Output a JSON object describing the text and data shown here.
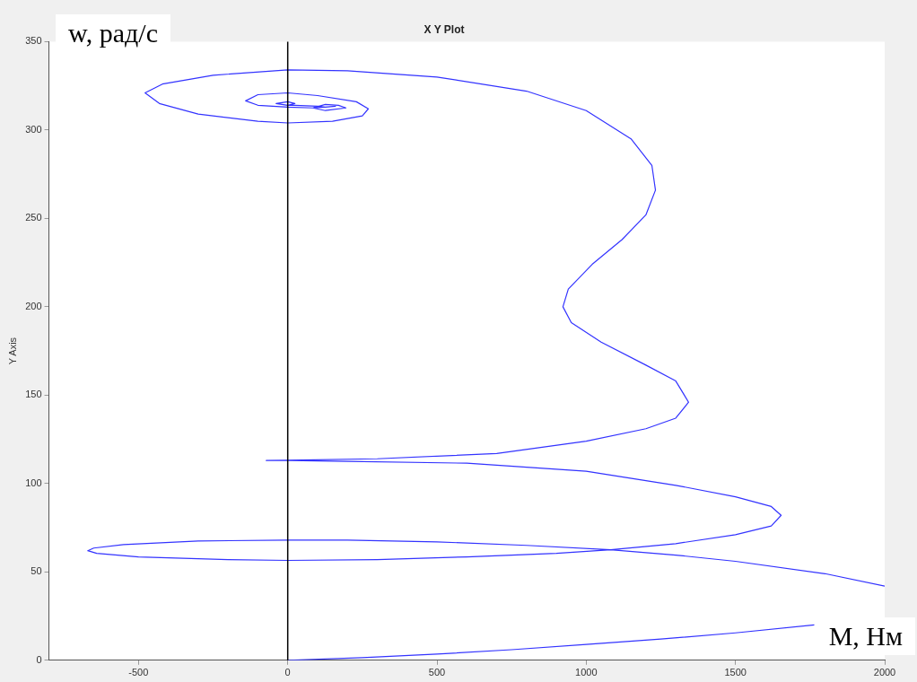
{
  "chart_data": {
    "type": "line",
    "title": "X Y Plot",
    "ylabel": "Y Axis",
    "annotations": [
      "w, рад/с",
      "M, Нм"
    ],
    "xlim": [
      -800,
      2000
    ],
    "xticks": [
      -500,
      0,
      500,
      1000,
      1500,
      2000
    ],
    "ylim": [
      0,
      350
    ],
    "yticks": [
      0,
      50,
      100,
      150,
      200,
      250,
      300,
      350
    ],
    "grid": false,
    "legend": false,
    "marker": "none",
    "line_style": "solid",
    "ref_lines": [
      {
        "axis": "x",
        "value": 0,
        "color": "#000000"
      }
    ],
    "series": [
      {
        "color": "#3333ff",
        "x": [
          0,
          250,
          500,
          750,
          1000,
          1250,
          1500,
          1764,
          null,
          2000,
          1800,
          1500,
          1300,
          1082,
          800,
          500,
          200,
          0,
          -300,
          -550,
          -650,
          -670,
          -640,
          -500,
          -200,
          0,
          300,
          600,
          900,
          1082,
          1300,
          1500,
          1620,
          1653,
          1620,
          1500,
          1300,
          1000,
          600,
          200,
          0,
          -72,
          0,
          300,
          700,
          1000,
          1200,
          1300,
          1343,
          1300,
          1200,
          1050,
          950,
          922,
          940,
          1020,
          1120,
          1200,
          1232,
          1220,
          1150,
          1000,
          800,
          500,
          200,
          0,
          -250,
          -420,
          -478,
          -430,
          -300,
          -100,
          0,
          150,
          250,
          270,
          230,
          100,
          0,
          -100,
          -141,
          -100,
          0,
          84,
          126,
          195,
          170,
          126,
          84,
          126,
          160,
          126,
          100,
          24,
          0,
          -39,
          0,
          24,
          0
        ],
        "values": [
          0,
          1.5,
          3.5,
          6,
          9,
          12,
          15.5,
          20,
          null,
          42,
          49,
          56,
          59.5,
          62.5,
          65,
          67,
          68,
          68,
          67.5,
          65.5,
          63.5,
          62,
          60.5,
          58.5,
          57,
          56.5,
          57,
          58.5,
          60.5,
          62.5,
          66,
          71,
          76,
          82,
          87,
          92.5,
          99,
          107,
          111.5,
          112.5,
          113,
          113,
          113.2,
          114,
          117,
          124,
          131,
          137,
          146,
          158,
          167,
          180,
          191,
          200,
          210,
          224,
          238,
          252,
          266,
          280,
          295,
          311,
          322,
          330,
          333.5,
          334,
          331,
          326,
          321,
          315,
          309,
          305,
          304,
          305,
          308,
          312,
          316,
          319.5,
          321,
          320,
          316.5,
          314,
          313,
          312.5,
          311,
          312.5,
          314,
          314.5,
          312.5,
          313,
          313.5,
          313,
          313.5,
          314,
          314,
          315,
          316,
          315,
          314
        ]
      }
    ]
  }
}
